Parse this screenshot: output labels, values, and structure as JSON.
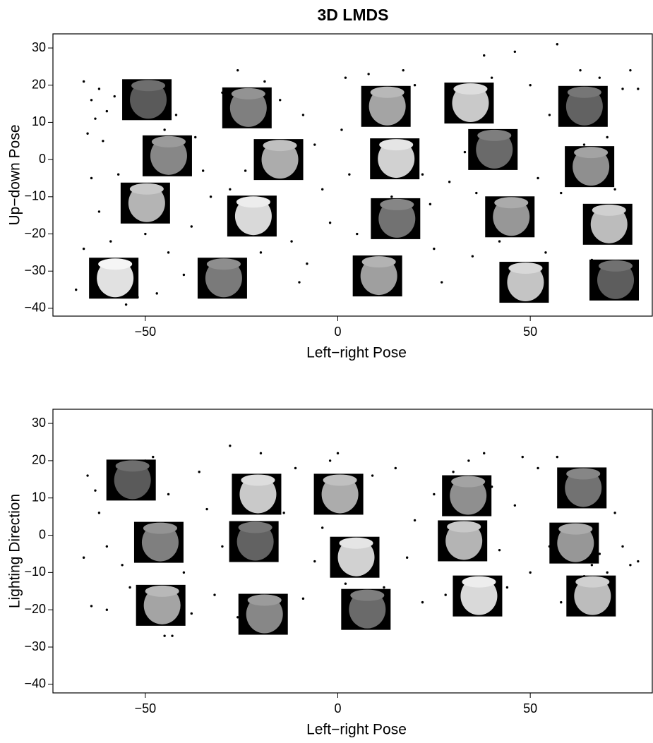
{
  "chart_data": [
    {
      "type": "scatter",
      "title": "3D LMDS",
      "xlabel": "Left−right Pose",
      "ylabel": "Up−down Pose",
      "xlim": [
        -74,
        81.7
      ],
      "ylim": [
        -42.1,
        33.8
      ],
      "xticks": [
        {
          "value": -50,
          "label": "−50"
        },
        0,
        50
      ],
      "yticks": [
        {
          "value": -40,
          "label": "−40"
        },
        {
          "value": -30,
          "label": "−30"
        },
        {
          "value": -20,
          "label": "−20"
        },
        {
          "value": -10,
          "label": "−10"
        },
        0,
        10,
        20,
        30
      ],
      "color": "#000000",
      "x": [
        -66,
        -64,
        -62,
        -60,
        -58,
        -63,
        -65,
        -61,
        -64,
        -62,
        -57,
        -59,
        -66,
        -68,
        -52,
        -55,
        -47,
        -44,
        -40,
        -42,
        -37,
        -35,
        -33,
        -38,
        -30,
        -28,
        -26,
        -19,
        -15,
        -12,
        -10,
        -9,
        -6,
        -4,
        -2,
        -8,
        2,
        1,
        3,
        5,
        6,
        8,
        17,
        20,
        22,
        24,
        25,
        27,
        29,
        31,
        33,
        36,
        38,
        40,
        42,
        44,
        46,
        50,
        52,
        54,
        55,
        57,
        58,
        60,
        63,
        66,
        68,
        70,
        72,
        74,
        76,
        78,
        -50,
        -45,
        -20,
        14,
        35,
        64,
        -24,
        10
      ],
      "y": [
        21,
        16,
        19,
        13,
        17,
        11,
        7,
        5,
        -5,
        -14,
        -4,
        -22,
        -24,
        -35,
        -37,
        -39,
        -36,
        -25,
        -31,
        12,
        6,
        -3,
        -10,
        -18,
        18,
        -8,
        24,
        21,
        16,
        -22,
        -33,
        12,
        4,
        -8,
        -17,
        -28,
        22,
        8,
        -4,
        -20,
        -27,
        23,
        24,
        20,
        -4,
        -12,
        -24,
        -33,
        -6,
        20,
        2,
        -9,
        28,
        22,
        -22,
        -36,
        29,
        20,
        -5,
        -25,
        12,
        31,
        -9,
        -3,
        24,
        -27,
        22,
        6,
        -8,
        19,
        24,
        19,
        -20,
        8,
        -25,
        -10,
        -26,
        4,
        -3,
        5
      ],
      "images": {
        "x": [
          -49.6,
          -23.6,
          12.5,
          34.1,
          63.7,
          -44.3,
          -15.4,
          14.8,
          40.3,
          65.4,
          -50,
          -22.3,
          15.0,
          44.7,
          70.1,
          -58.2,
          -30.0,
          10.3,
          48.4,
          71.8
        ],
        "y": [
          16.1,
          13.9,
          14.3,
          15.2,
          14.3,
          1.0,
          0.0,
          0.2,
          2.7,
          -1.9,
          -11.7,
          -15.2,
          -15.9,
          -15.4,
          -17.4,
          -31.9,
          -31.9,
          -31.3,
          -33.0,
          -32.4
        ]
      }
    },
    {
      "type": "scatter",
      "xlabel": "Left−right Pose",
      "ylabel": "Lighting Direction",
      "xlim": [
        -74,
        81.7
      ],
      "ylim": [
        -42.3,
        33.8
      ],
      "xticks": [
        {
          "value": -50,
          "label": "−50"
        },
        0,
        50
      ],
      "yticks": [
        {
          "value": -40,
          "label": "−40"
        },
        {
          "value": -30,
          "label": "−30"
        },
        {
          "value": -20,
          "label": "−20"
        },
        {
          "value": -10,
          "label": "−10"
        },
        0,
        10,
        20,
        30
      ],
      "color": "#000000",
      "x": [
        -66,
        -65,
        -63,
        -62,
        -60,
        -64,
        -60,
        -58,
        -56,
        -54,
        -50,
        -48,
        -44,
        -42,
        -40,
        -45,
        -43,
        -36,
        -34,
        -32,
        -30,
        -28,
        -26,
        -20,
        -16,
        -14,
        -11,
        -9,
        -6,
        -4,
        -2,
        0,
        2,
        6,
        9,
        12,
        15,
        18,
        20,
        22,
        25,
        27,
        28,
        30,
        34,
        38,
        40,
        42,
        44,
        46,
        48,
        50,
        52,
        55,
        57,
        60,
        64,
        66,
        68,
        70,
        72,
        74,
        76,
        78,
        -52,
        58,
        36,
        -24,
        5,
        -38
      ],
      "y": [
        -6,
        16,
        12,
        6,
        -3,
        -19,
        -20,
        19,
        -8,
        -14,
        20,
        21,
        11,
        -3,
        -10,
        -27,
        -27,
        17,
        7,
        -16,
        -3,
        24,
        -22,
        22,
        -6,
        6,
        18,
        -17,
        -7,
        2,
        20,
        22,
        -13,
        -2,
        16,
        -14,
        18,
        -6,
        4,
        -18,
        11,
        -3,
        -16,
        17,
        20,
        22,
        13,
        -4,
        -14,
        8,
        21,
        -10,
        18,
        -3,
        21,
        14,
        -11,
        -8,
        -5,
        -10,
        6,
        -3,
        -8,
        -7,
        -17,
        -18,
        -6,
        14,
        -23,
        -21
      ],
      "images": {
        "x": [
          -53.7,
          -46.5,
          -46.0,
          -21.1,
          -21.8,
          -19.4,
          0.2,
          4.4,
          7.3,
          33.5,
          32.4,
          36.3,
          63.4,
          61.4,
          65.8
        ],
        "y": [
          14.8,
          -1.9,
          -18.8,
          11.0,
          -1.7,
          -21.2,
          11.0,
          -5.9,
          -19.9,
          10.6,
          -1.5,
          -16.3,
          12.7,
          -2.1,
          -16.3
        ]
      }
    }
  ]
}
